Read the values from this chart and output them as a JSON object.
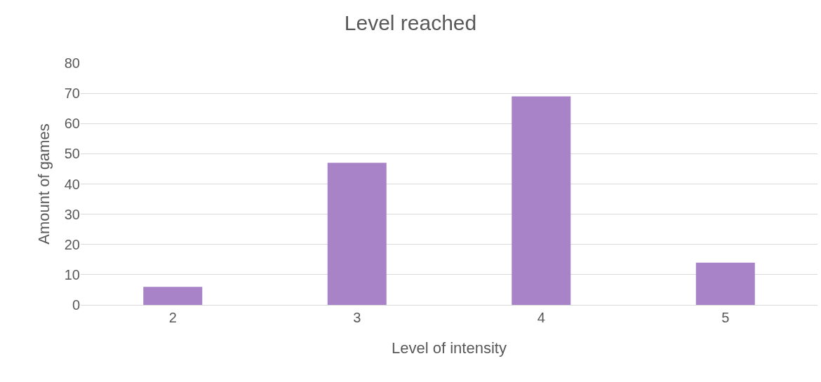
{
  "chart_data": {
    "type": "bar",
    "title": "Level reached",
    "xlabel": "Level of intensity",
    "ylabel": "Amount of games",
    "categories": [
      "2",
      "3",
      "4",
      "5"
    ],
    "values": [
      6,
      47,
      69,
      14
    ],
    "color": "#a983c7",
    "ylim": [
      0,
      80
    ],
    "yticks": [
      0,
      10,
      20,
      30,
      40,
      50,
      60,
      70,
      80
    ],
    "grid": "y",
    "legend": false
  }
}
